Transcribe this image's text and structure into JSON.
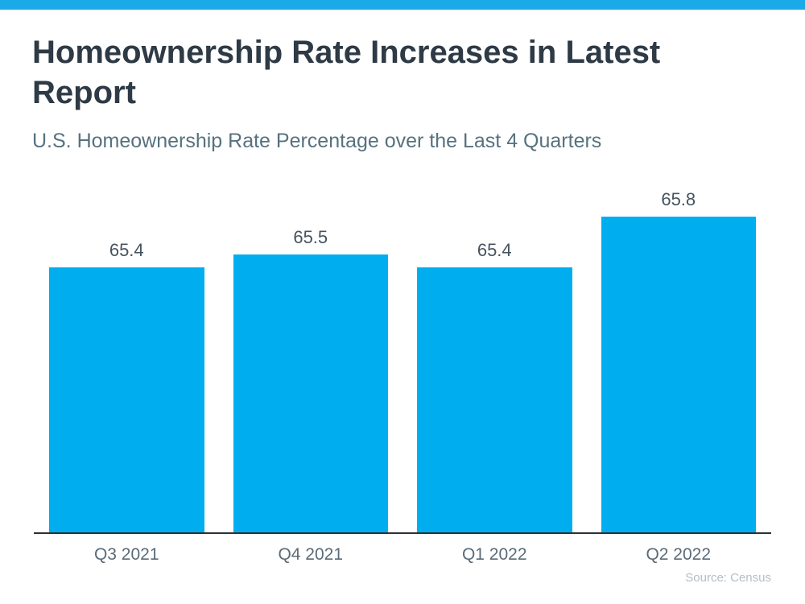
{
  "accent": {
    "top_bar_color": "#1baae8"
  },
  "chart_data": {
    "type": "bar",
    "title": "Homeownership Rate Increases in Latest Report",
    "subtitle": "U.S. Homeownership Rate Percentage over the Last 4 Quarters",
    "categories": [
      "Q3 2021",
      "Q4 2021",
      "Q1 2022",
      "Q2 2022"
    ],
    "values": [
      65.4,
      65.5,
      65.4,
      65.8
    ],
    "value_labels": [
      "65.4",
      "65.5",
      "65.4",
      "65.8"
    ],
    "xlabel": "",
    "ylabel": "",
    "ylim": [
      63.3,
      66.05
    ],
    "grid": false,
    "legend": false,
    "bar_color": "#00aeef",
    "axis_line_color": "#2b3137",
    "source_note": "Source: Census"
  }
}
